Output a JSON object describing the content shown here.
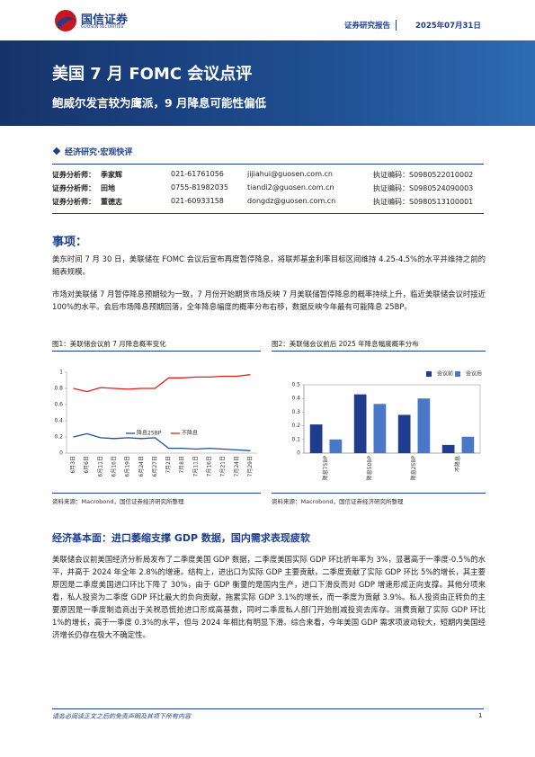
{
  "header": {
    "logo_name": "国信证券",
    "logo_en": "GUOSEN SECURITIES",
    "report_type": "证券研究报告",
    "date": "2025年07月31日"
  },
  "banner": {
    "title": "美国 7 月 FOMC 会议点评",
    "subtitle": "鲍威尔发言较为鹰派，9 月降息可能性偏低"
  },
  "category": "经济研究·宏观快评",
  "analysts": [
    [
      "证券分析师：",
      "季家辉",
      "021-61761056",
      "jijiahui@guosen.com.cn",
      "执证编码：S0980522010002"
    ],
    [
      "证券分析师：",
      "田地",
      "0755-81982035",
      "tiandi2@guosen.com.cn",
      "执证编码：S0980524090003"
    ],
    [
      "证券分析师：",
      "董德志",
      "021-60933158",
      "dongdz@guosen.com.cn",
      "执证编码：S0980513100001"
    ]
  ],
  "section1": {
    "title": "事项：",
    "paragraphs": [
      "美东时间 7 月 30 日，美联储在 FOMC 会议后宣布再度暂停降息，将联邦基金利率目标区间维持 4.25-4.5%的水平并维持之前的缩表规模。",
      "市场对美联储 7 月暂停降息预期较为一致，7 月份开始期货市场反映 7 月美联储暂停降息的概率持续上升，临近美联储会议时接近 100%的水平。会后市场降息预期回落，全年降息幅度的概率分布右移，数据反映今年最有可能降息 25BP。"
    ]
  },
  "figures": [
    {
      "title": "图1：美联储会议前 7 月降息概率变化",
      "source": "资料来源：Macrobond，国信证券经济研究所整理",
      "chart": {
        "type": "line",
        "categories": [
          "6月3日",
          "6月6日",
          "6月11日",
          "6月16日",
          "6月19日",
          "6月24日",
          "6月27日",
          "7月2日",
          "7月8日",
          "7月11日",
          "7月16日",
          "7月21日",
          "7月24日",
          "7月29日"
        ],
        "series": [
          {
            "name": "降息25BP",
            "color": "#1f4e9c",
            "values": [
              0.2,
              0.24,
              0.19,
              0.18,
              0.19,
              0.18,
              0.19,
              0.06,
              0.06,
              0.05,
              0.06,
              0.05,
              0.04,
              0.03
            ]
          },
          {
            "name": "不降息",
            "color": "#e0201b",
            "values": [
              0.8,
              0.76,
              0.81,
              0.8,
              0.79,
              0.8,
              0.8,
              0.93,
              0.93,
              0.94,
              0.94,
              0.95,
              0.95,
              0.97
            ]
          }
        ],
        "ylim": [
          0,
          1
        ],
        "yticks": [
          0,
          0.2,
          0.4,
          0.6,
          0.8,
          1
        ],
        "legend": "lower center"
      }
    },
    {
      "title": "图2：美联储会议前后 2025 年降息幅度概率分布",
      "source": "资料来源：Macrobond，国信证券经济研究所整理",
      "chart": {
        "type": "bar",
        "categories": [
          "降息75BP",
          "降息50BP",
          "降息25BP",
          "不降息"
        ],
        "series": [
          {
            "name": "会议前",
            "color": "#1f3d8c",
            "values": [
              0.21,
              0.43,
              0.28,
              0.06
            ]
          },
          {
            "name": "会议后",
            "color": "#4a78c8",
            "values": [
              0.1,
              0.36,
              0.4,
              0.12
            ]
          }
        ],
        "ylim": [
          0,
          0.5
        ],
        "yticks": [
          0,
          0.1,
          0.2,
          0.3,
          0.4,
          0.5
        ],
        "legend": "upper right"
      }
    }
  ],
  "section2": {
    "title": "经济基本面：进口萎缩支撑 GDP 数据，国内需求表现疲软",
    "paragraphs": [
      "美联储会议前美国经济分析局发布了二季度美国 GDP 数据，二季度美国实际 GDP 环比折年率为 3%，显著高于一季度-0.5%的水平，并高于 2024 年全年 2.8%的增速。结构上，进出口为实际 GDP 主要贡献，二季度贡献了实际 GDP 环比 5%的增长，其主要原因是二季度美国进口环比下降了 30%，由于 GDP 衡量的是国内生产，进口下滑反而对 GDP 增速形成正向支撑。其他分项来看，私人投资为二季度 GDP 环比最大的负向贡献，拖累实际 GDP 3.1%的增长，而一季度为贡献 3.9%。私人投资由正转负的主要原因是一季度制造商出于关税恐慌抢进口形成高基数，同时二季度私人部门开始削减投资去库存。消费贡献了实际 GDP 环比 1%的增长，高于一季度 0.3%的水平，但与 2024 年相比有明显下滑。综合来看，今年美国 GDP 需求项波动较大，短期内美国经济增长仍存在极大不确定性。"
    ]
  },
  "footer": {
    "note": "请务必阅读正文之后的免责声明及其项下所有内容",
    "page": "1"
  }
}
